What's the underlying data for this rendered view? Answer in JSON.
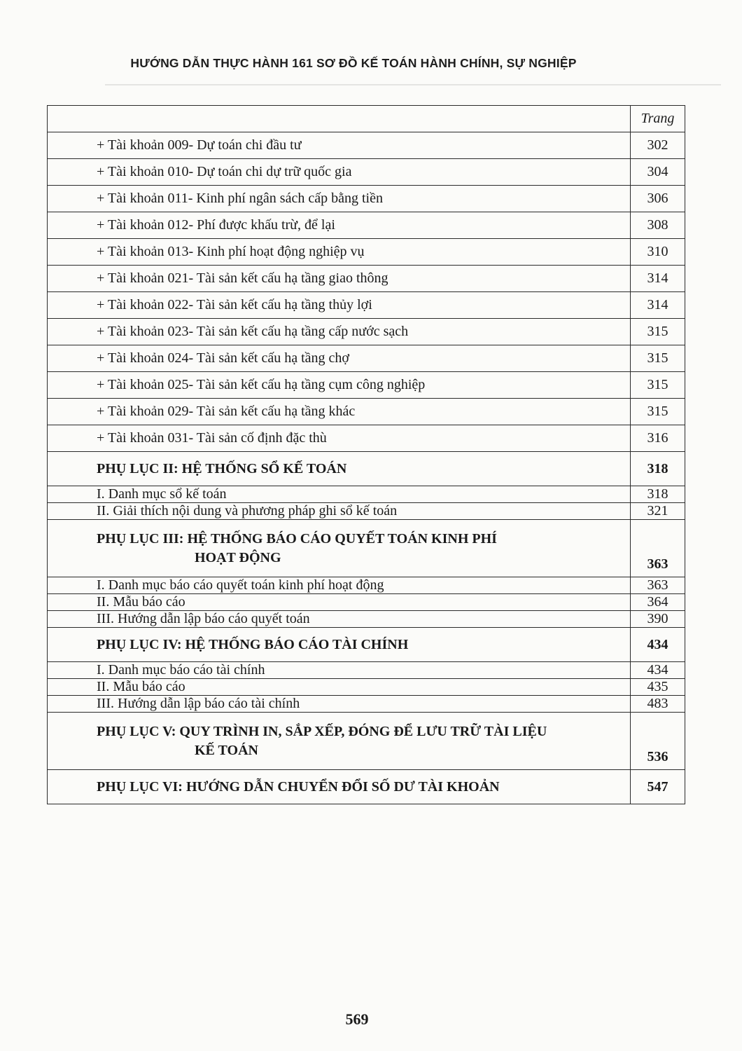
{
  "running_head": "HƯỚNG DẪN THỰC HÀNH 161 SƠ ĐỒ KẾ TOÁN HÀNH CHÍNH, SỰ NGHIỆP",
  "toc": {
    "page_header": "Trang",
    "rows": [
      {
        "type": "item",
        "title": "+ Tài khoản 009- Dự toán chi đầu tư",
        "page": "302"
      },
      {
        "type": "item",
        "title": "+ Tài khoản 010- Dự toán chi dự trữ quốc gia",
        "page": "304"
      },
      {
        "type": "item",
        "title": "+ Tài khoản 011- Kinh phí ngân sách cấp bằng tiền",
        "page": "306"
      },
      {
        "type": "item",
        "title": "+ Tài khoản 012- Phí được khấu trừ, để lại",
        "page": "308"
      },
      {
        "type": "item",
        "title": "+ Tài khoản 013- Kinh phí hoạt động nghiệp vụ",
        "page": "310"
      },
      {
        "type": "item",
        "title": "+ Tài khoản 021- Tài sản kết cấu hạ tầng giao thông",
        "page": "314"
      },
      {
        "type": "item",
        "title": "+ Tài khoản 022- Tài sản kết cấu hạ tầng thủy lợi",
        "page": "314"
      },
      {
        "type": "item",
        "title": "+ Tài khoản 023- Tài sản kết cấu hạ tầng cấp nước sạch",
        "page": "315"
      },
      {
        "type": "item",
        "title": "+ Tài khoản 024- Tài sản kết cấu hạ tầng chợ",
        "page": "315"
      },
      {
        "type": "item",
        "title": "+ Tài khoản 025- Tài sản kết cấu hạ tầng cụm công nghiệp",
        "page": "315"
      },
      {
        "type": "item",
        "title": "+ Tài khoản 029- Tài sản kết cấu hạ tầng khác",
        "page": "315"
      },
      {
        "type": "item",
        "title": "+ Tài khoản 031- Tài sản cố định đặc thù",
        "page": "316"
      },
      {
        "type": "section",
        "title": "PHỤ LỤC II: HỆ THỐNG SỔ KẾ TOÁN",
        "page": "318"
      },
      {
        "type": "sub",
        "title": "I. Danh mục sổ kế toán",
        "page": "318"
      },
      {
        "type": "sub",
        "title": "II. Giải thích nội dung và phương pháp ghi sổ kế toán",
        "page": "321"
      },
      {
        "type": "section2",
        "title": "PHỤ LỤC III: HỆ THỐNG BÁO CÁO QUYẾT TOÁN KINH PHÍ",
        "title2": "HOẠT ĐỘNG",
        "page": "363"
      },
      {
        "type": "sub",
        "title": "I. Danh mục báo cáo quyết toán kinh phí hoạt động",
        "page": "363"
      },
      {
        "type": "sub",
        "title": "II. Mẫu báo cáo",
        "page": "364"
      },
      {
        "type": "sub",
        "title": "III. Hướng dẫn lập báo cáo quyết toán",
        "page": "390"
      },
      {
        "type": "section",
        "title": "PHỤ LỤC IV: HỆ THỐNG BÁO CÁO TÀI CHÍNH",
        "page": "434"
      },
      {
        "type": "sub",
        "title": "I. Danh mục báo cáo tài chính",
        "page": "434"
      },
      {
        "type": "sub",
        "title": "II. Mẫu báo cáo",
        "page": "435"
      },
      {
        "type": "sub",
        "title": "III. Hướng dẫn lập báo cáo tài chính",
        "page": "483"
      },
      {
        "type": "section2",
        "title": "PHỤ LỤC V: QUY TRÌNH IN, SẮP XẾP, ĐÓNG ĐỂ LƯU TRỮ TÀI LIỆU",
        "title2": "KẾ TOÁN",
        "page": "536"
      },
      {
        "type": "section",
        "title": "PHỤ LỤC VI: HƯỚNG DẪN CHUYỂN ĐỔI SỐ DƯ TÀI KHOẢN",
        "page": "547"
      }
    ]
  },
  "page_number": "569"
}
